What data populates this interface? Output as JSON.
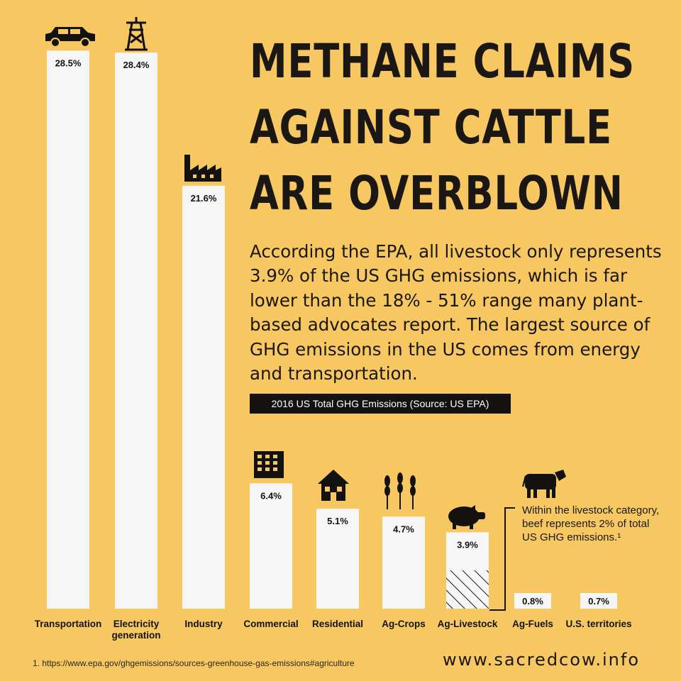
{
  "headline": [
    "METHANE CLAIMS",
    "AGAINST CATTLE",
    "ARE OVERBLOWN"
  ],
  "intro": "According the EPA, all livestock only represents 3.9% of the US GHG emissions, which is far lower than the 18% - 51% range many plant-based advocates report. The largest source of GHG emissions in the US comes from energy and transportation.",
  "source_badge": "2016 US Total GHG Emissions (Source: US EPA)",
  "note": "Within the livestock category, beef represents 2% of total US GHG emissions.¹",
  "footnote": "1. https://www.epa.gov/ghgemissions/sources-greenhouse-gas-emissions#agriculture",
  "website": "www.sacredcow.info",
  "colors": {
    "background": "#f7c862",
    "bar": "#f6f6f6",
    "text": "#141210"
  },
  "chart_data": {
    "type": "bar",
    "title": "2016 US Total GHG Emissions (Source: US EPA)",
    "categories": [
      "Transportation",
      "Electricity generation",
      "Industry",
      "Commercial",
      "Residential",
      "Ag-Crops",
      "Ag-Livestock",
      "Ag-Fuels",
      "U.S. territories"
    ],
    "values": [
      28.5,
      28.4,
      21.6,
      6.4,
      5.1,
      4.7,
      3.9,
      0.8,
      0.7
    ],
    "value_labels": [
      "28.5%",
      "28.4%",
      "21.6%",
      "6.4%",
      "5.1%",
      "4.7%",
      "3.9%",
      "0.8%",
      "0.7%"
    ],
    "icons": [
      "car-icon",
      "power-tower-icon",
      "factory-icon",
      "office-building-icon",
      "house-icon",
      "wheat-icon",
      "pig-icon",
      "",
      ""
    ],
    "annotation": {
      "category": "Ag-Livestock",
      "icon": "cow-icon",
      "hatched_portion_value": 2
    },
    "grid": false,
    "legend": "none"
  }
}
